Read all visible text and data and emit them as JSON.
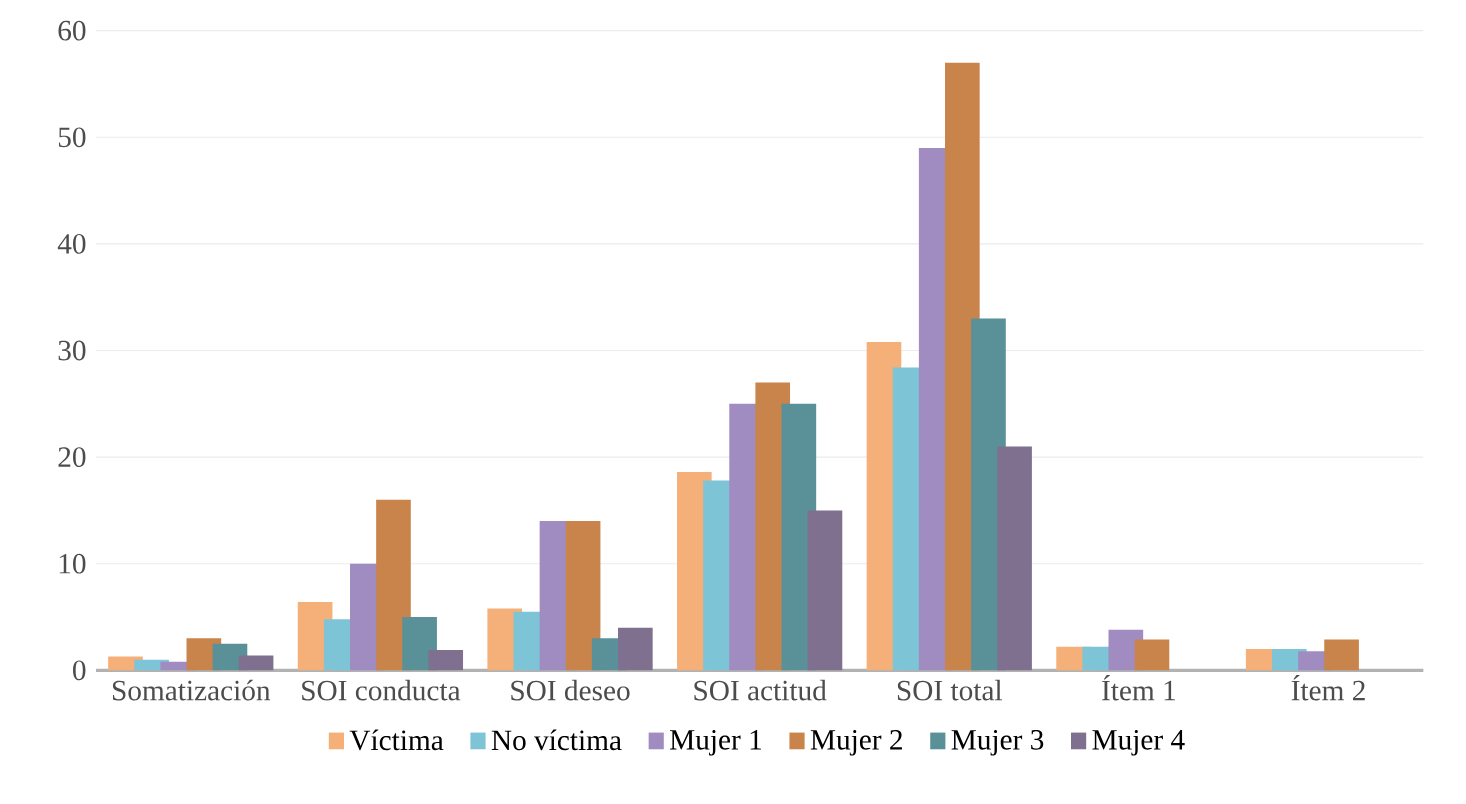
{
  "chart_data": {
    "type": "bar",
    "categories": [
      "Somatización",
      "SOI conducta",
      "SOI deseo",
      "SOI actitud",
      "SOI total",
      "Ítem 1",
      "Ítem 2"
    ],
    "series": [
      {
        "name": "Víctima",
        "color": "#f5b07a",
        "values": [
          1.3,
          6.4,
          5.8,
          18.6,
          30.8,
          2.2,
          2.0
        ]
      },
      {
        "name": "No víctima",
        "color": "#7cc4d6",
        "values": [
          1.0,
          4.8,
          5.5,
          17.8,
          28.4,
          2.2,
          2.0
        ]
      },
      {
        "name": "Mujer 1",
        "color": "#a08cc0",
        "values": [
          0.8,
          10,
          14,
          25,
          49,
          3.8,
          1.8
        ]
      },
      {
        "name": "Mujer 2",
        "color": "#c8844a",
        "values": [
          3.0,
          16,
          14,
          27,
          57,
          2.9,
          2.9
        ]
      },
      {
        "name": "Mujer 3",
        "color": "#5a9098",
        "values": [
          2.5,
          5,
          3,
          25,
          33,
          null,
          null
        ]
      },
      {
        "name": "Mujer 4",
        "color": "#7f7090",
        "values": [
          1.4,
          1.9,
          4,
          15,
          21,
          null,
          null
        ]
      }
    ],
    "ylim": [
      0,
      60
    ],
    "yticks": [
      0,
      10,
      20,
      30,
      40,
      50,
      60
    ],
    "grid": "y",
    "legend": "bottom"
  }
}
